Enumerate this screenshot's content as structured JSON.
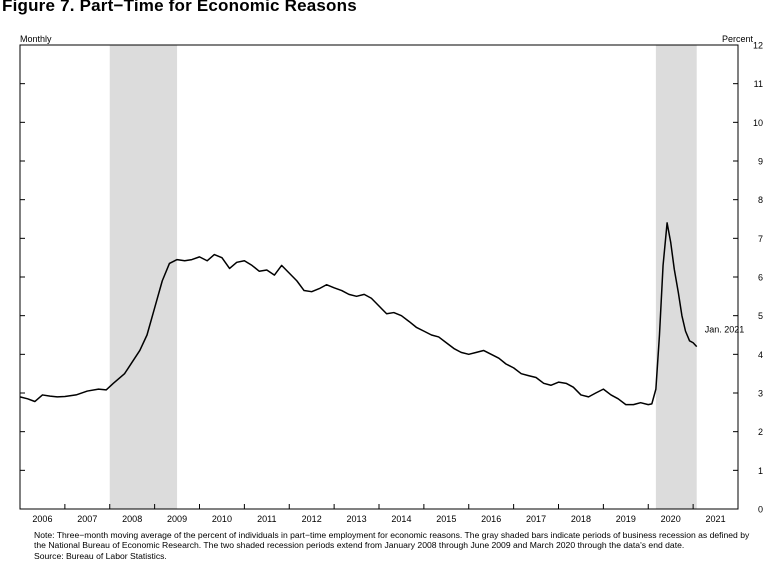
{
  "figure": {
    "title": "Figure 7. Part−Time for Economic Reasons",
    "note": "Note: Three−month moving average of the percent of individuals in part−time employment for economic reasons. The gray shaded bars indicate periods of business recession as defined by the National Bureau of Economic Research. The two shaded recession periods extend from January 2008 through June 2009 and March 2020 through the data's end date.",
    "source": "Source: Bureau of Labor Statistics."
  },
  "chart_data": {
    "type": "line",
    "frequency_label": "Monthly",
    "ylabel": "Percent",
    "ylim": [
      0,
      12
    ],
    "y_ticks": [
      "0",
      "1",
      "2",
      "3",
      "4",
      "5",
      "6",
      "7",
      "8",
      "9",
      "10",
      "11",
      "12"
    ],
    "xlim": [
      2006.0,
      2022.0
    ],
    "x_tick_labels": [
      "2006",
      "2007",
      "2008",
      "2009",
      "2010",
      "2011",
      "2012",
      "2013",
      "2014",
      "2015",
      "2016",
      "2017",
      "2018",
      "2019",
      "2020",
      "2021"
    ],
    "grid": false,
    "legend": "none",
    "recessions": [
      {
        "start": 2008.0,
        "end": 2009.5
      },
      {
        "start": 2020.17,
        "end": 2021.08
      }
    ],
    "annotation": {
      "text": "Jan. 2021",
      "x": 2021.08,
      "y": 4.2
    },
    "series": [
      {
        "color": "#000000",
        "points": [
          [
            2006.0,
            2.9
          ],
          [
            2006.17,
            2.85
          ],
          [
            2006.33,
            2.78
          ],
          [
            2006.5,
            2.95
          ],
          [
            2006.67,
            2.92
          ],
          [
            2006.83,
            2.9
          ],
          [
            2007.0,
            2.91
          ],
          [
            2007.25,
            2.95
          ],
          [
            2007.5,
            3.05
          ],
          [
            2007.75,
            3.1
          ],
          [
            2007.92,
            3.08
          ],
          [
            2008.08,
            3.25
          ],
          [
            2008.33,
            3.5
          ],
          [
            2008.5,
            3.8
          ],
          [
            2008.67,
            4.1
          ],
          [
            2008.83,
            4.5
          ],
          [
            2009.0,
            5.2
          ],
          [
            2009.17,
            5.9
          ],
          [
            2009.33,
            6.35
          ],
          [
            2009.5,
            6.45
          ],
          [
            2009.67,
            6.42
          ],
          [
            2009.83,
            6.45
          ],
          [
            2010.0,
            6.52
          ],
          [
            2010.17,
            6.42
          ],
          [
            2010.33,
            6.58
          ],
          [
            2010.5,
            6.5
          ],
          [
            2010.67,
            6.22
          ],
          [
            2010.83,
            6.38
          ],
          [
            2011.0,
            6.42
          ],
          [
            2011.17,
            6.3
          ],
          [
            2011.33,
            6.15
          ],
          [
            2011.5,
            6.18
          ],
          [
            2011.67,
            6.05
          ],
          [
            2011.83,
            6.3
          ],
          [
            2012.0,
            6.1
          ],
          [
            2012.17,
            5.9
          ],
          [
            2012.33,
            5.65
          ],
          [
            2012.5,
            5.62
          ],
          [
            2012.67,
            5.7
          ],
          [
            2012.83,
            5.8
          ],
          [
            2013.0,
            5.72
          ],
          [
            2013.17,
            5.65
          ],
          [
            2013.33,
            5.55
          ],
          [
            2013.5,
            5.5
          ],
          [
            2013.67,
            5.55
          ],
          [
            2013.83,
            5.45
          ],
          [
            2014.0,
            5.25
          ],
          [
            2014.17,
            5.05
          ],
          [
            2014.33,
            5.08
          ],
          [
            2014.5,
            5.0
          ],
          [
            2014.67,
            4.85
          ],
          [
            2014.83,
            4.7
          ],
          [
            2015.0,
            4.6
          ],
          [
            2015.17,
            4.5
          ],
          [
            2015.33,
            4.45
          ],
          [
            2015.5,
            4.3
          ],
          [
            2015.67,
            4.15
          ],
          [
            2015.83,
            4.05
          ],
          [
            2016.0,
            4.0
          ],
          [
            2016.17,
            4.05
          ],
          [
            2016.33,
            4.1
          ],
          [
            2016.5,
            4.0
          ],
          [
            2016.67,
            3.9
          ],
          [
            2016.83,
            3.75
          ],
          [
            2017.0,
            3.65
          ],
          [
            2017.17,
            3.5
          ],
          [
            2017.33,
            3.45
          ],
          [
            2017.5,
            3.4
          ],
          [
            2017.67,
            3.25
          ],
          [
            2017.83,
            3.2
          ],
          [
            2018.0,
            3.28
          ],
          [
            2018.17,
            3.25
          ],
          [
            2018.33,
            3.15
          ],
          [
            2018.5,
            2.95
          ],
          [
            2018.67,
            2.9
          ],
          [
            2018.83,
            3.0
          ],
          [
            2019.0,
            3.1
          ],
          [
            2019.17,
            2.95
          ],
          [
            2019.33,
            2.85
          ],
          [
            2019.5,
            2.7
          ],
          [
            2019.67,
            2.7
          ],
          [
            2019.83,
            2.75
          ],
          [
            2020.0,
            2.7
          ],
          [
            2020.08,
            2.72
          ],
          [
            2020.17,
            3.1
          ],
          [
            2020.25,
            4.5
          ],
          [
            2020.33,
            6.3
          ],
          [
            2020.42,
            7.4
          ],
          [
            2020.5,
            6.9
          ],
          [
            2020.58,
            6.2
          ],
          [
            2020.67,
            5.6
          ],
          [
            2020.75,
            5.0
          ],
          [
            2020.83,
            4.6
          ],
          [
            2020.92,
            4.35
          ],
          [
            2021.0,
            4.3
          ],
          [
            2021.08,
            4.2
          ]
        ]
      }
    ]
  }
}
